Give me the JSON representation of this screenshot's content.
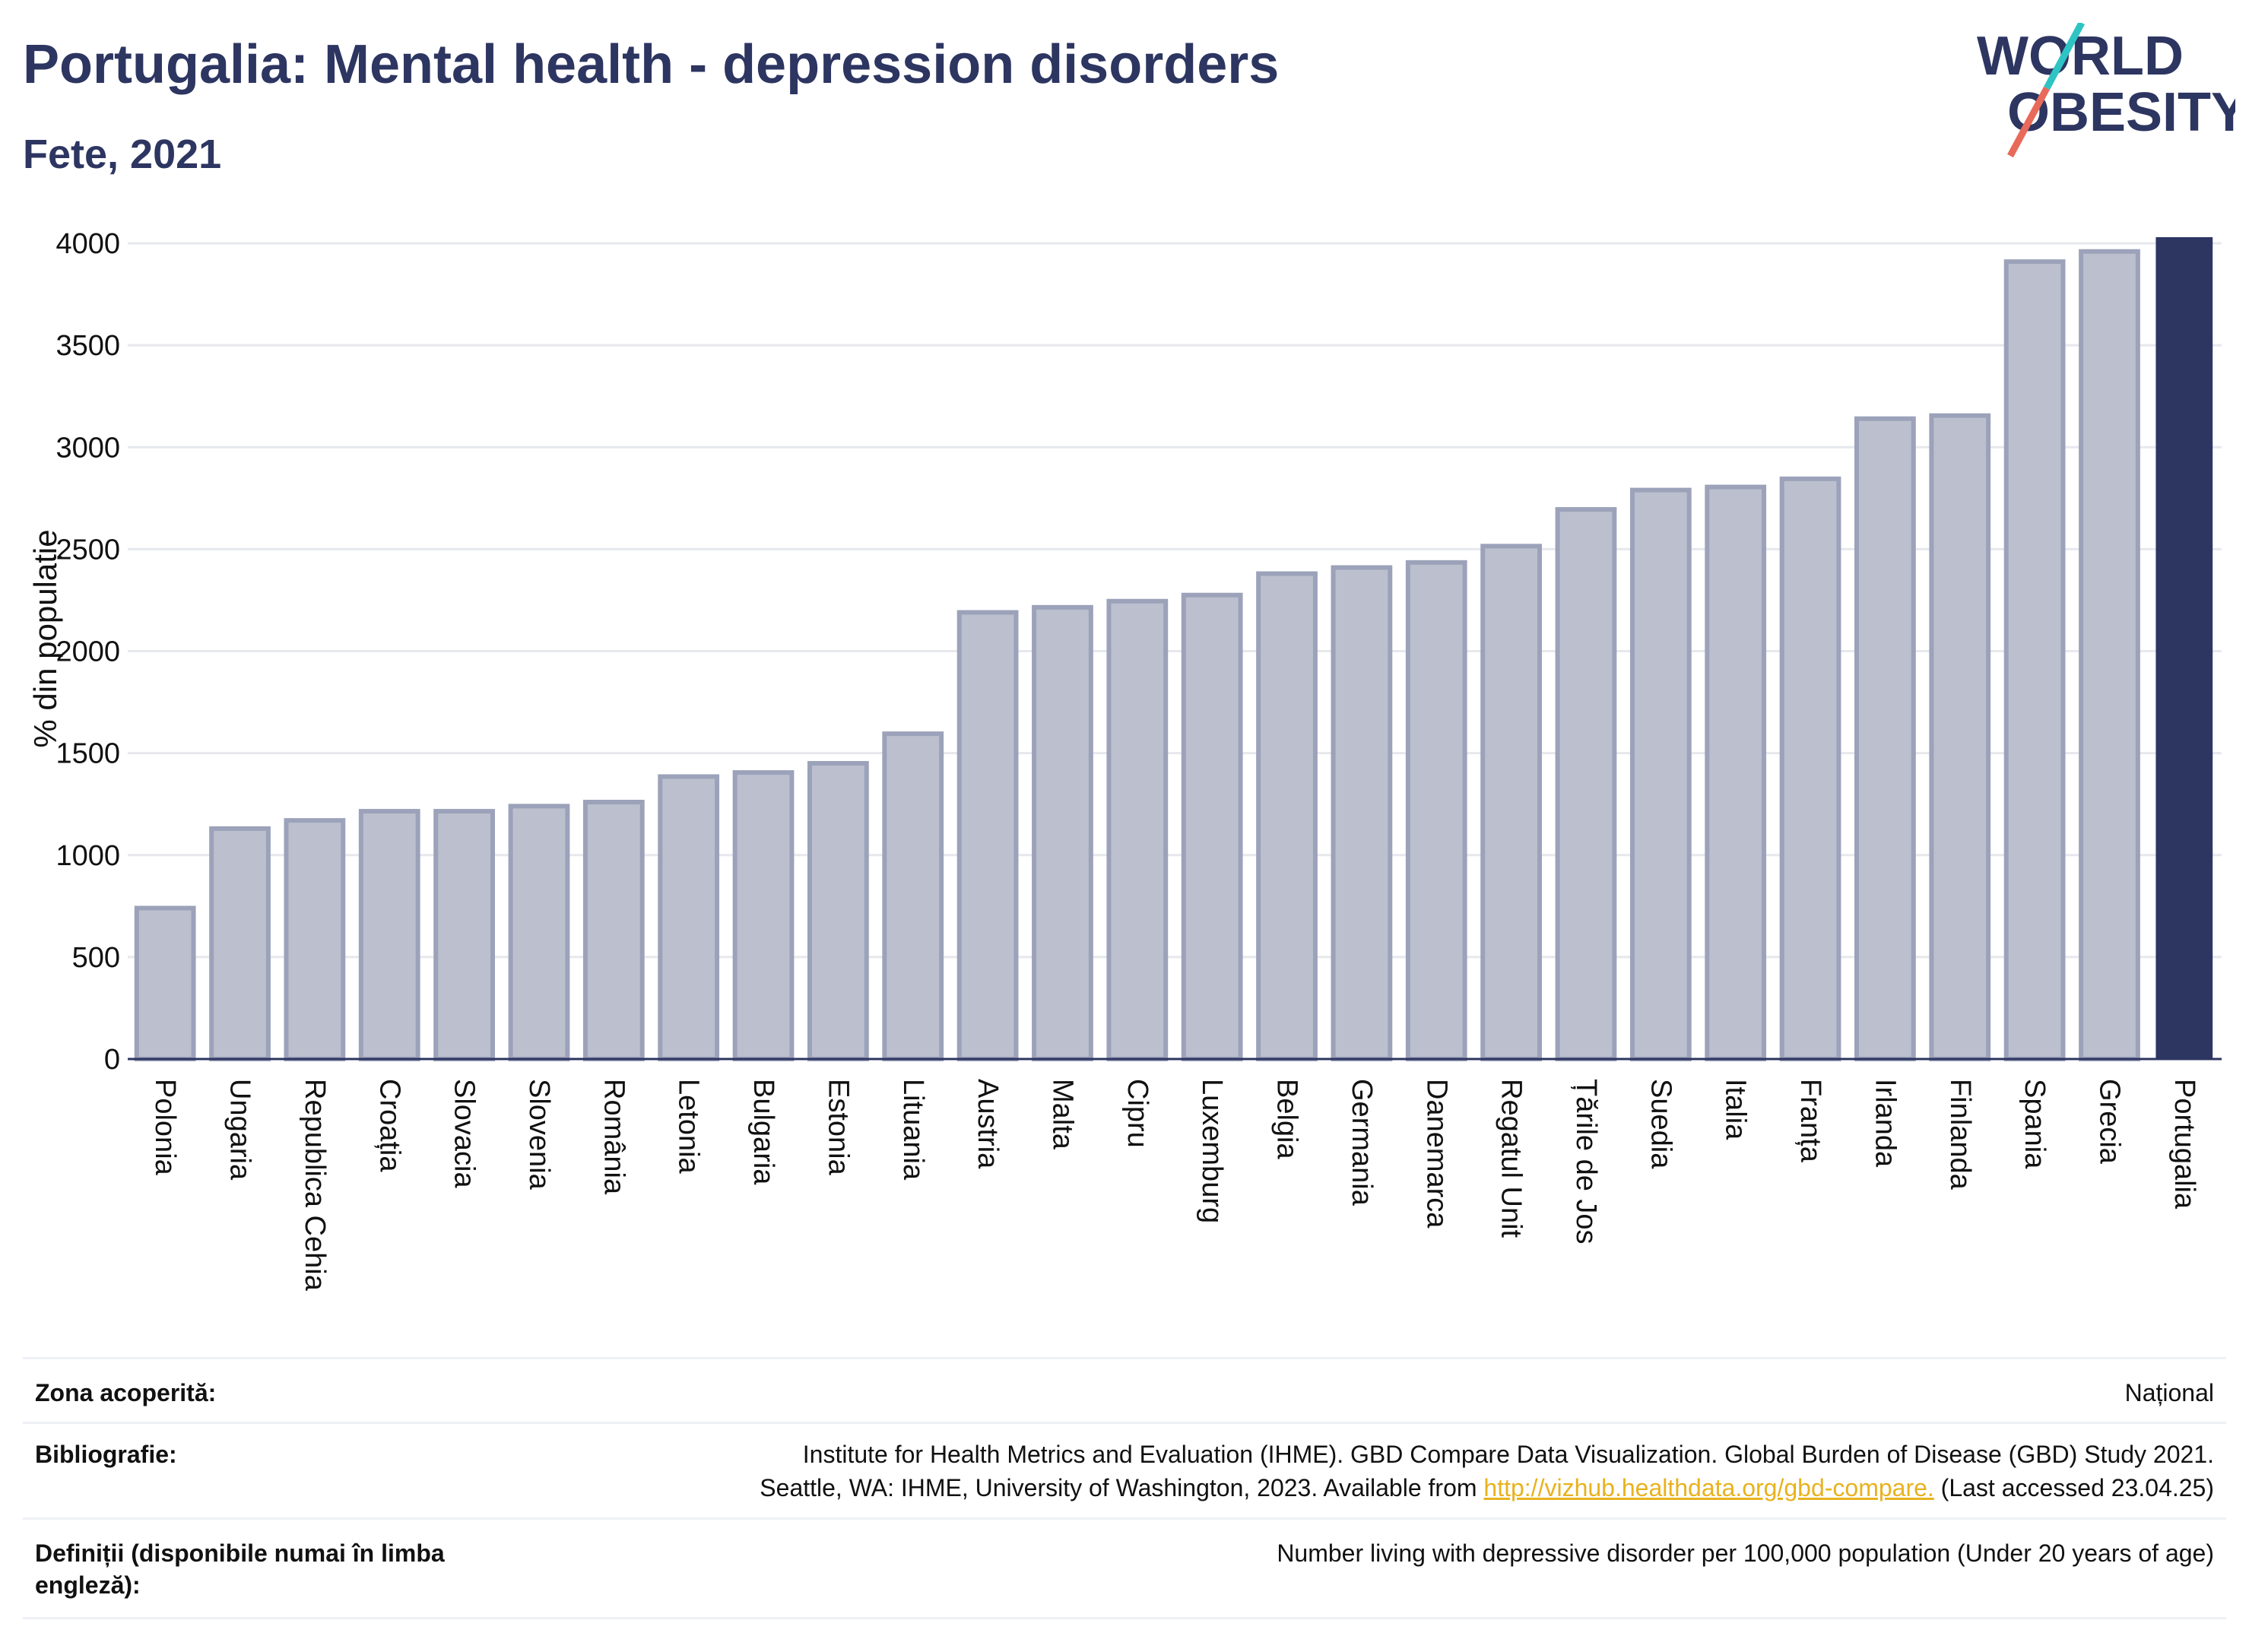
{
  "header": {
    "title": "Portugalia: Mental health - depression disorders",
    "subtitle": "Fete, 2021"
  },
  "logo": {
    "line1": "WORLD",
    "line2": "OBESITY",
    "colors": [
      "#2d3561",
      "#2ec4c4",
      "#e86a5a"
    ]
  },
  "colors": {
    "bar": "#bcc0ce",
    "bar_border": "#9ba2b9",
    "highlight": "#2d3561",
    "grid": "#e6e8ee",
    "axis": "#2d3561"
  },
  "chart_data": {
    "type": "bar",
    "title": "Portugalia: Mental health - depression disorders",
    "subtitle": "Fete, 2021",
    "ylabel": "% din populație",
    "xlabel": "",
    "ylim": [
      0,
      4000
    ],
    "yticks": [
      0,
      500,
      1000,
      1500,
      2000,
      2500,
      3000,
      3500,
      4000
    ],
    "grid": true,
    "highlight": "Portugalia",
    "categories": [
      "Polonia",
      "Ungaria",
      "Republica Cehia",
      "Croația",
      "Slovacia",
      "Slovenia",
      "România",
      "Letonia",
      "Bulgaria",
      "Estonia",
      "Lituania",
      "Austria",
      "Malta",
      "Cipru",
      "Luxemburg",
      "Belgia",
      "Germania",
      "Danemarca",
      "Regatul Unit",
      "Țările de Jos",
      "Suedia",
      "Italia",
      "Franța",
      "Irlanda",
      "Finlanda",
      "Spania",
      "Grecia",
      "Portugalia"
    ],
    "values": [
      740,
      1130,
      1170,
      1215,
      1215,
      1240,
      1260,
      1385,
      1405,
      1450,
      1595,
      2190,
      2215,
      2245,
      2275,
      2380,
      2410,
      2435,
      2515,
      2695,
      2790,
      2805,
      2845,
      3140,
      3155,
      3910,
      3960,
      4030
    ]
  },
  "meta": {
    "coverage_label": "Zona acoperită:",
    "coverage_value": "Național",
    "bib_label": "Bibliografie:",
    "bib_line1": "Institute for Health Metrics and Evaluation (IHME). GBD Compare Data Visualization. Global Burden of Disease (GBD) Study 2021.",
    "bib_line2_pre": "Seattle, WA: IHME, University of Washington, 2023. Available from ",
    "bib_link": "http://vizhub.healthdata.org/gbd-compare.",
    "bib_line2_post": " (Last accessed 23.04.25)",
    "def_label_line1": "Definiții (disponibile numai în limba",
    "def_label_line2": "engleză):",
    "def_value": "Number living with depressive disorder per 100,000 population (Under 20 years of age)"
  }
}
